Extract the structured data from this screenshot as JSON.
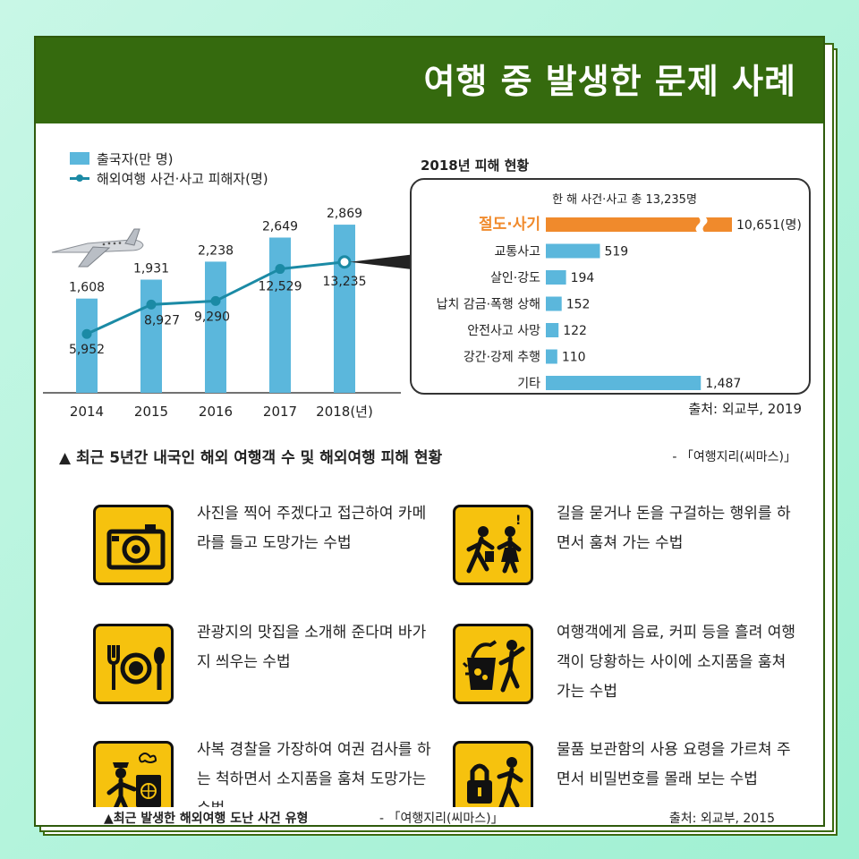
{
  "header": {
    "title": "여행 중 발생한 문제 사례"
  },
  "legend": {
    "bar_label": "출국자(만 명)",
    "line_label": "해외여행 사건·사고 피해자(명)"
  },
  "colors": {
    "bar": "#5bb7dc",
    "line": "#1b8aa5",
    "highlight_bar": "#f08a2c",
    "header_green": "#356a0e",
    "sign_yellow": "#f6c20e"
  },
  "chart_data": [
    {
      "type": "bar",
      "categories": [
        "2014",
        "2015",
        "2016",
        "2017",
        "2018(년)"
      ],
      "series": [
        {
          "name": "출국자(만 명)",
          "values": [
            1608,
            1931,
            2238,
            2649,
            2869
          ]
        },
        {
          "name": "해외여행 사건·사고 피해자(명)",
          "values": [
            5952,
            8927,
            9290,
            12529,
            13235
          ]
        }
      ],
      "bar_labels": [
        "1,608",
        "1,931",
        "2,238",
        "2,649",
        "2,869"
      ],
      "line_labels": [
        "5,952",
        "8,927",
        "9,290",
        "12,529",
        "13,235"
      ],
      "series_types": [
        "bar",
        "line"
      ]
    },
    {
      "type": "bar",
      "orientation": "horizontal",
      "title": "2018년 피해 현황",
      "subtitle": "한 해 사건·사고 총 13,235명",
      "categories": [
        "절도·사기",
        "교통사고",
        "살인·강도",
        "납치 감금·폭행 상해",
        "안전사고 사망",
        "강간·강제 추행",
        "기타"
      ],
      "values": [
        10651,
        519,
        194,
        152,
        122,
        110,
        1487
      ],
      "value_labels": [
        "10,651(명)",
        "519",
        "194",
        "152",
        "122",
        "110",
        "1,487"
      ],
      "broken_axis_bar": 0
    }
  ],
  "source1": "출처: 외교부, 2019",
  "caption1": "▲ 최근 5년간 내국인 해외 여행객 수 및 해외여행 피해 현황",
  "caption1_src": "- 「여행지리(씨마스)」",
  "methods": [
    {
      "icon": "camera-icon",
      "text": "사진을 찍어 주겠다고 접근하여 카메라를 들고 도망가는 수법"
    },
    {
      "icon": "beggar-pickpocket-icon",
      "text": "길을 묻거나 돈을 구걸하는 행위를 하면서 훔쳐 가는 수법"
    },
    {
      "icon": "restaurant-icon",
      "text": "관광지의 맛집을 소개해 준다며 바가지 씌우는 수법"
    },
    {
      "icon": "spilled-drink-icon",
      "text": "여행객에게 음료, 커피 등을 흘려 여행객이 당황하는 사이에 소지품을 훔쳐 가는 수법"
    },
    {
      "icon": "fake-police-icon",
      "text": "사복 경찰을 가장하여 여권 검사를 하는 척하면서 소지품을 훔쳐 도망가는 수법"
    },
    {
      "icon": "locker-thief-icon",
      "text": "물품 보관함의 사용 요령을 가르쳐 주면서 비밀번호를 몰래 보는 수법"
    }
  ],
  "caption2": "▲최근 발생한 해외여행 도난 사건 유형",
  "caption2_src": "- 「여행지리(씨마스)」",
  "source2": "출처: 외교부, 2015"
}
